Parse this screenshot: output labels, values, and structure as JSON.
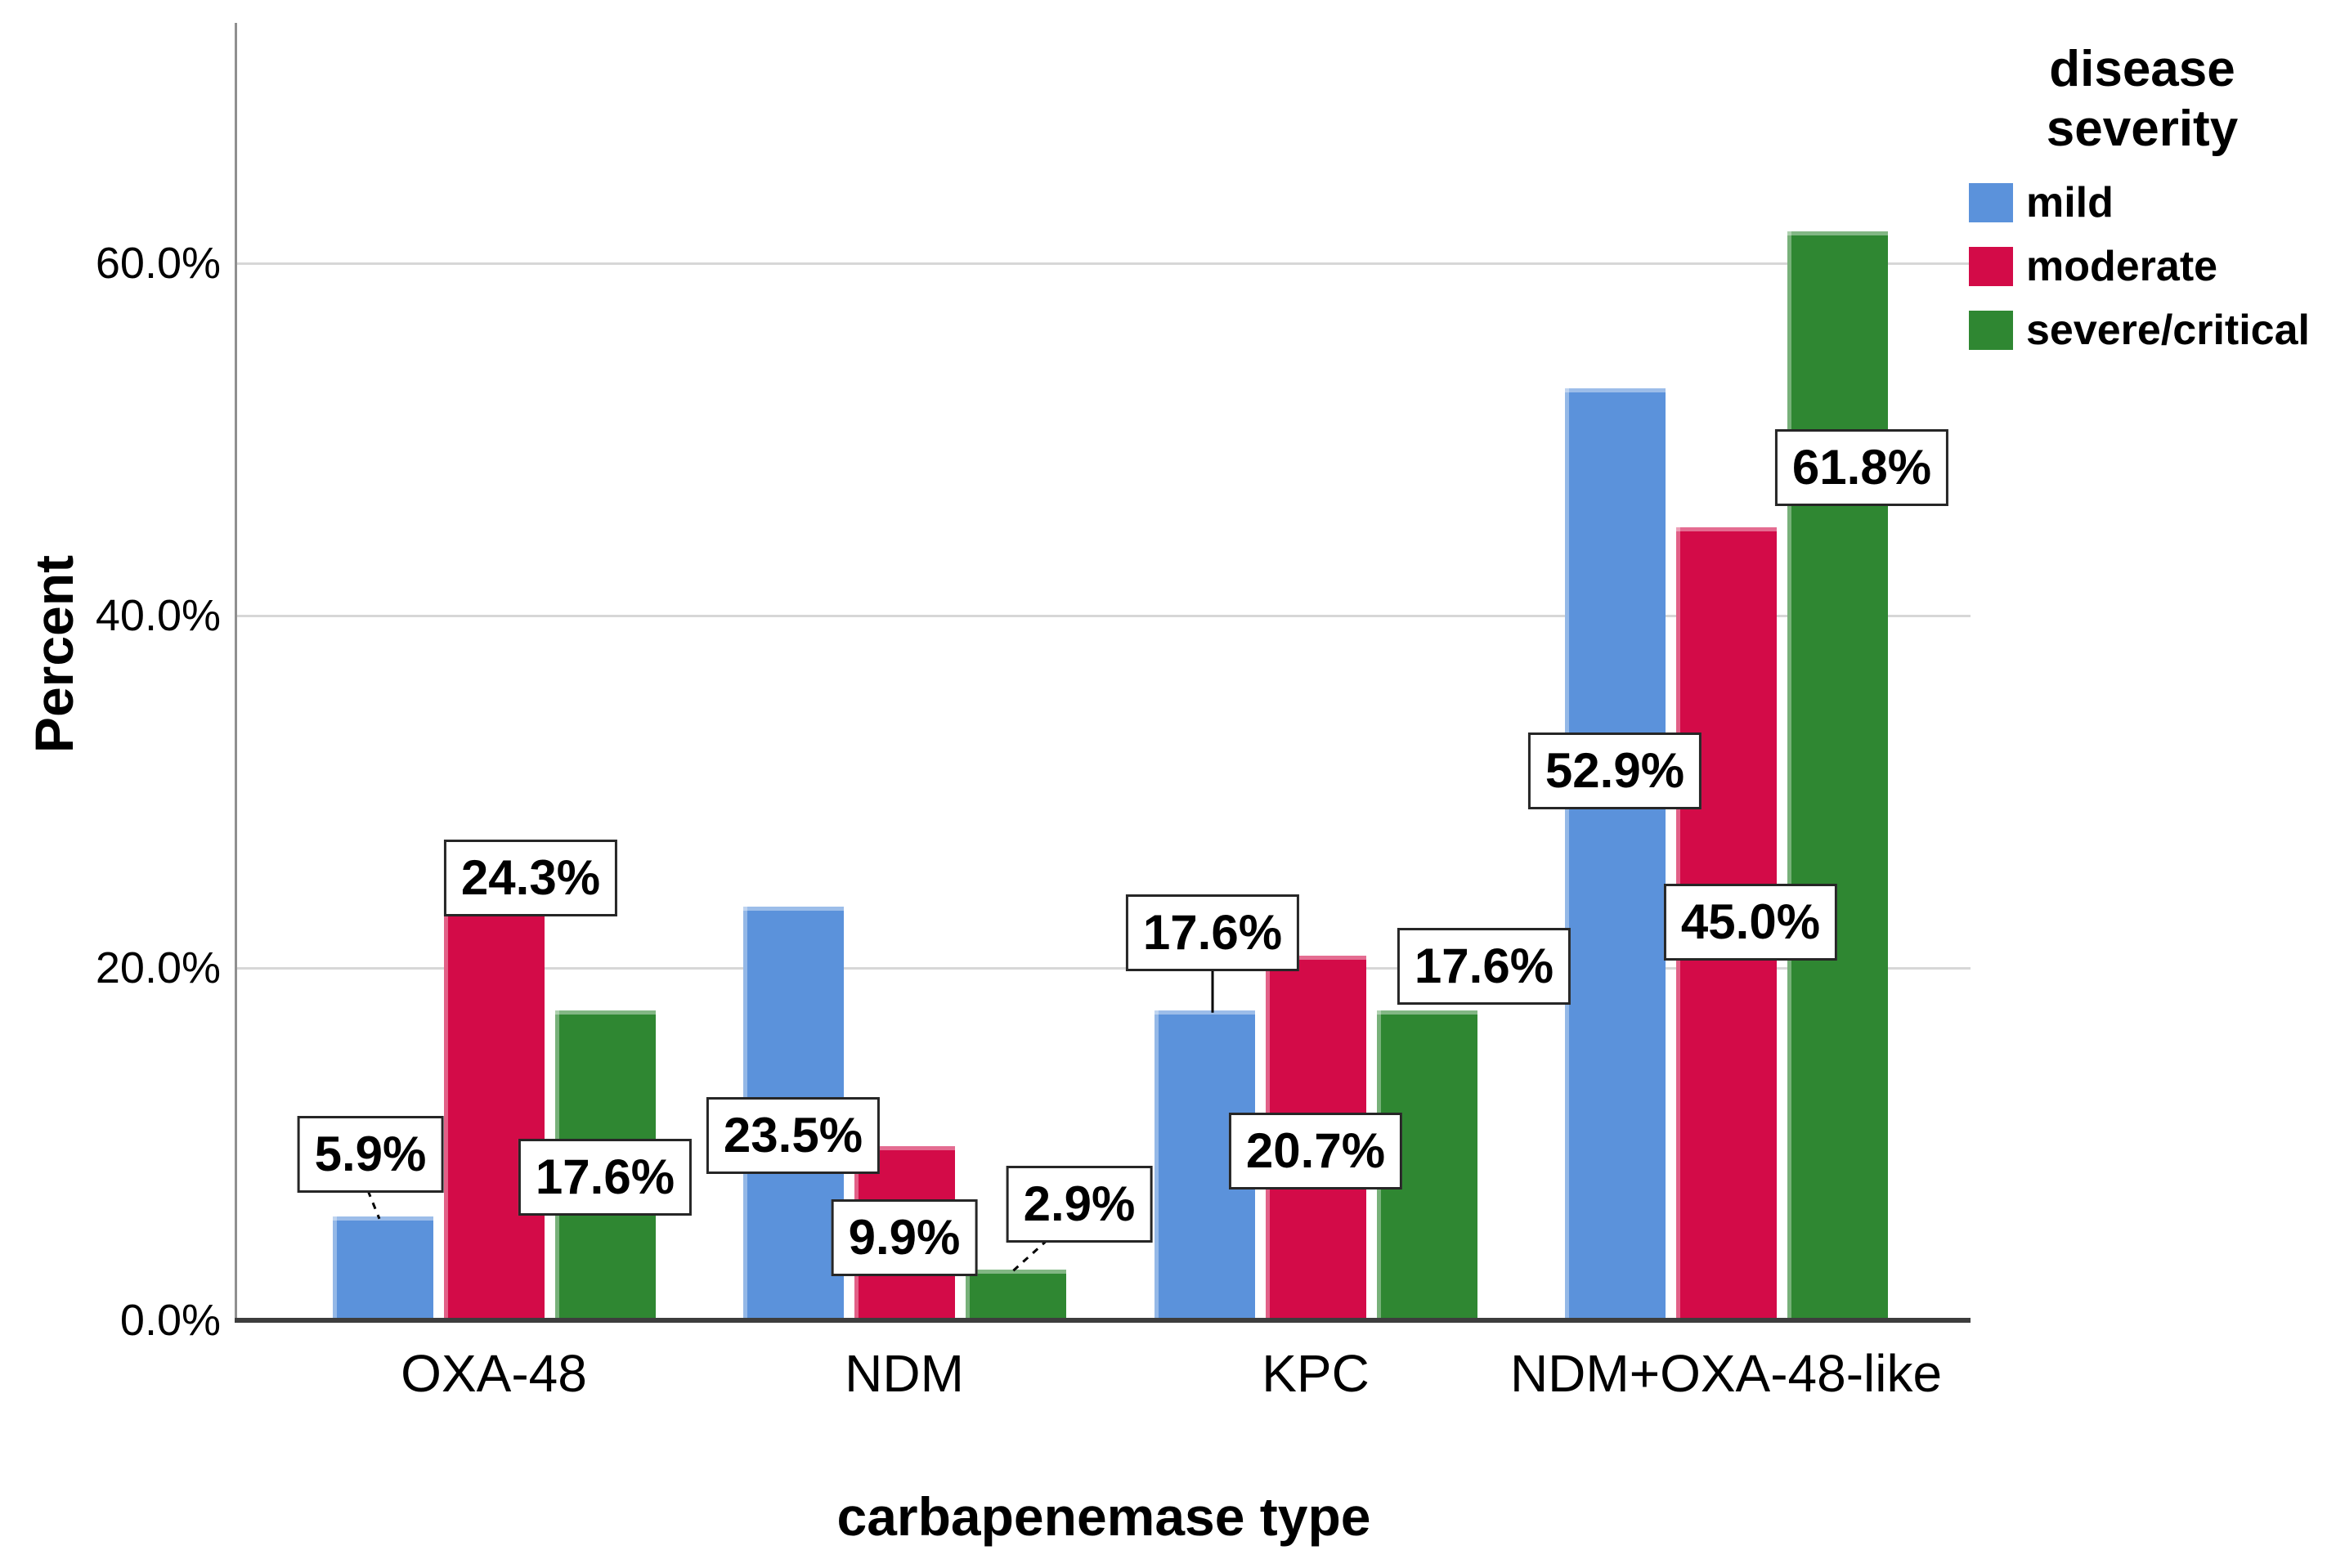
{
  "chart_data": {
    "type": "bar",
    "title": "",
    "categories": [
      "OXA-48",
      "NDM",
      "KPC",
      "NDM+OXA-48-like"
    ],
    "series": [
      {
        "name": "mild",
        "color": "#5B92DB",
        "values": [
          5.9,
          23.5,
          17.6,
          52.9
        ],
        "labels": [
          "5.9%",
          "23.5%",
          "17.6%",
          "52.9%"
        ]
      },
      {
        "name": "moderate",
        "color": "#D30B48",
        "values": [
          24.3,
          9.9,
          20.7,
          45.0
        ],
        "labels": [
          "24.3%",
          "9.9%",
          "20.7%",
          "45.0%"
        ]
      },
      {
        "name": "severe/critical",
        "color": "#2F8732",
        "values": [
          17.6,
          2.9,
          17.6,
          61.8
        ],
        "labels": [
          "17.6%",
          "2.9%",
          "17.6%",
          "61.8%"
        ]
      }
    ],
    "xlabel": "carbapenemase type",
    "ylabel": "Percent",
    "yticks": [
      {
        "label": "0.0%",
        "value": 0
      },
      {
        "label": "20.0%",
        "value": 20
      },
      {
        "label": "40.0%",
        "value": 40
      },
      {
        "label": "60.0%",
        "value": 60
      }
    ],
    "ylim": [
      0,
      73.6
    ],
    "grid": "horizontal",
    "legend": {
      "title": "disease severity",
      "position": "top-right"
    },
    "axis_colors": {
      "gridline": "#d7d7d7",
      "y_axis": "#8f8f8f",
      "x_axis": "#3d3d3d"
    }
  }
}
